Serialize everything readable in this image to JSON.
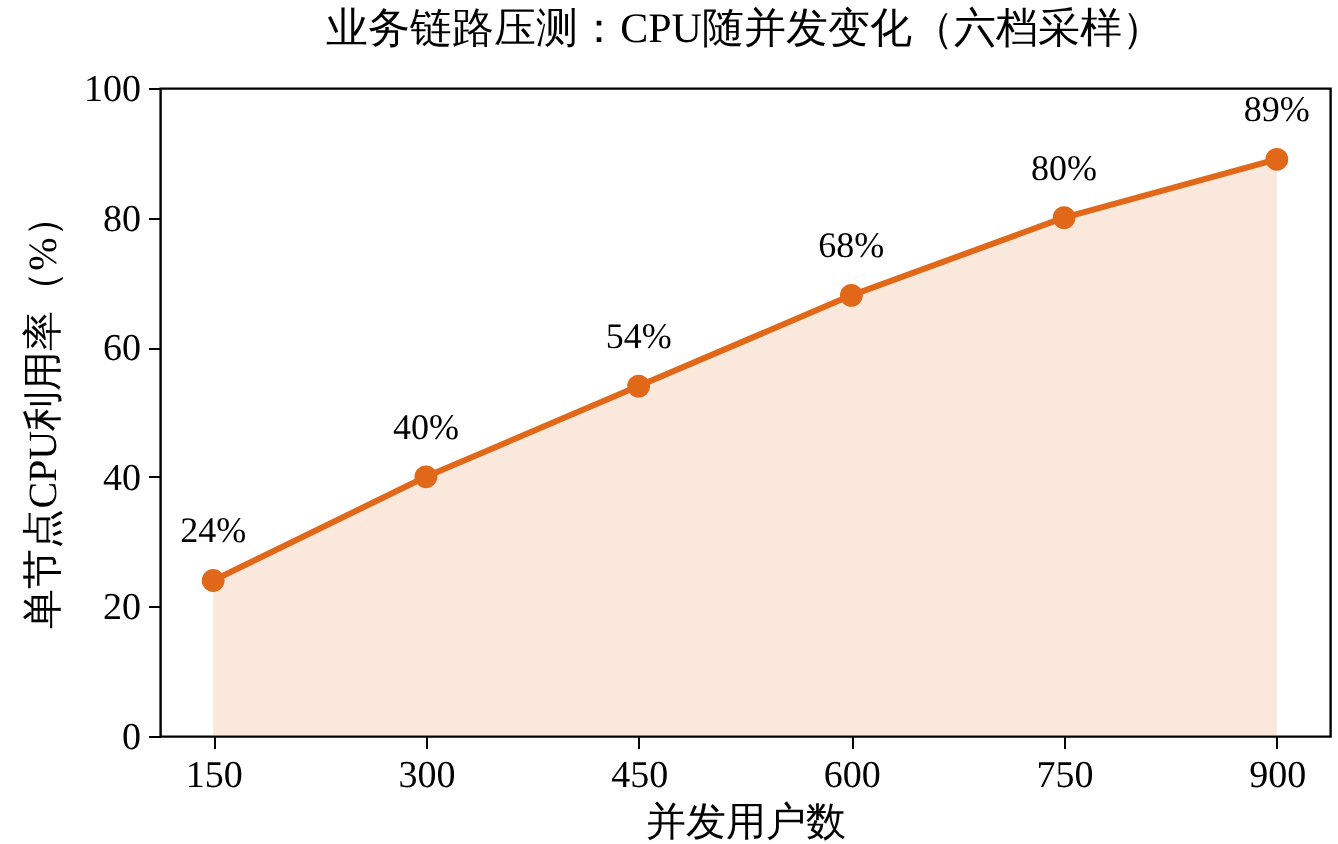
{
  "chart_data": {
    "type": "area",
    "title": "业务链路压测：CPU随并发变化（六档采样）",
    "xlabel": "并发用户数",
    "ylabel": "单节点CPU利用率（%）",
    "x": [
      150,
      300,
      450,
      600,
      750,
      900
    ],
    "series": [
      {
        "color": "#e06818",
        "values": [
          24,
          40,
          54,
          68,
          80,
          89
        ],
        "value_labels": [
          "24%",
          "40%",
          "54%",
          "68%",
          "80%",
          "89%"
        ]
      }
    ],
    "xlim": [
      112.5,
      937.5
    ],
    "xticks": [
      150,
      300,
      450,
      600,
      750,
      900
    ],
    "ylim": [
      0,
      100
    ],
    "yticks": [
      0,
      20,
      40,
      60,
      80,
      100
    ],
    "grid": false,
    "marker": "circle",
    "line_style": "solid"
  }
}
